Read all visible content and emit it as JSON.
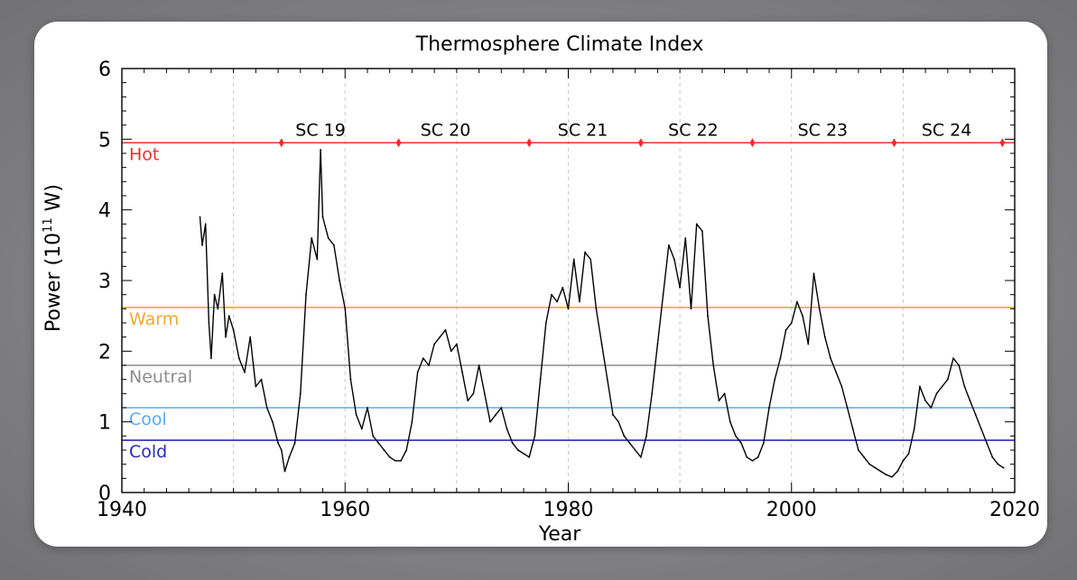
{
  "chart_data": {
    "type": "line",
    "title": "Thermosphere Climate Index",
    "xlabel": "Year",
    "ylabel_main": "Power (10",
    "ylabel_sup": "11",
    "ylabel_end": " W)",
    "xlim": [
      1940,
      2020
    ],
    "ylim": [
      0,
      6
    ],
    "x_ticks": [
      1940,
      1960,
      1980,
      2000,
      2020
    ],
    "y_ticks": [
      0,
      1,
      2,
      3,
      4,
      5,
      6
    ],
    "x_tick_labels": [
      "1940",
      "1960",
      "1980",
      "2000",
      "2020"
    ],
    "y_tick_labels": [
      "0",
      "1",
      "2",
      "3",
      "4",
      "5",
      "6"
    ],
    "grid": "vertical dashed every 10 years",
    "thresholds": [
      {
        "label": "Hot",
        "value": 4.95,
        "color": "#e8322e"
      },
      {
        "label": "Warm",
        "value": 2.62,
        "color": "#f0a830"
      },
      {
        "label": "Neutral",
        "value": 1.8,
        "color": "#8c8c8c"
      },
      {
        "label": "Cool",
        "value": 1.2,
        "color": "#5aaaf0"
      },
      {
        "label": "Cold",
        "value": 0.74,
        "color": "#2a2ab0"
      }
    ],
    "cycle_boundaries": [
      1954.3,
      1964.8,
      1976.5,
      1986.5,
      1996.5,
      2009.2,
      2018.9
    ],
    "cycles": [
      {
        "label": "SC 19",
        "x": 1957.8
      },
      {
        "label": "SC 20",
        "x": 1969.0
      },
      {
        "label": "SC 21",
        "x": 1981.3
      },
      {
        "label": "SC 22",
        "x": 1991.2
      },
      {
        "label": "SC 23",
        "x": 2002.8
      },
      {
        "label": "SC 24",
        "x": 2013.9
      }
    ],
    "series_color": "#000000",
    "series": [
      {
        "x": [
          1947.0,
          1947.2,
          1947.5,
          1947.8,
          1948.0,
          1948.3,
          1948.6,
          1949.0,
          1949.3,
          1949.6,
          1950.0,
          1950.5,
          1951.0,
          1951.5,
          1952.0,
          1952.5,
          1953.0,
          1953.5,
          1954.0,
          1954.3,
          1954.6,
          1955.0,
          1955.5,
          1956.0,
          1956.5,
          1957.0,
          1957.5,
          1957.8,
          1958.0,
          1958.5,
          1959.0,
          1959.5,
          1960.0,
          1960.5,
          1961.0,
          1961.5,
          1962.0,
          1962.5,
          1963.0,
          1963.5,
          1964.0,
          1964.5,
          1965.0,
          1965.5,
          1966.0,
          1966.5,
          1967.0,
          1967.5,
          1968.0,
          1968.5,
          1969.0,
          1969.5,
          1970.0,
          1970.5,
          1971.0,
          1971.5,
          1972.0,
          1972.5,
          1973.0,
          1973.5,
          1974.0,
          1974.5,
          1975.0,
          1975.5,
          1976.0,
          1976.5,
          1977.0,
          1977.5,
          1978.0,
          1978.5,
          1979.0,
          1979.5,
          1980.0,
          1980.5,
          1981.0,
          1981.5,
          1982.0,
          1982.5,
          1983.0,
          1983.5,
          1984.0,
          1984.5,
          1985.0,
          1985.5,
          1986.0,
          1986.5,
          1987.0,
          1987.5,
          1988.0,
          1988.5,
          1989.0,
          1989.5,
          1990.0,
          1990.5,
          1991.0,
          1991.5,
          1992.0,
          1992.5,
          1993.0,
          1993.5,
          1994.0,
          1994.5,
          1995.0,
          1995.5,
          1996.0,
          1996.5,
          1997.0,
          1997.5,
          1998.0,
          1998.5,
          1999.0,
          1999.5,
          2000.0,
          2000.5,
          2001.0,
          2001.5,
          2002.0,
          2002.5,
          2003.0,
          2003.5,
          2004.0,
          2004.5,
          2005.0,
          2005.5,
          2006.0,
          2006.5,
          2007.0,
          2007.5,
          2008.0,
          2008.5,
          2009.0,
          2009.5,
          2010.0,
          2010.5,
          2011.0,
          2011.5,
          2012.0,
          2012.5,
          2013.0,
          2013.5,
          2014.0,
          2014.5,
          2015.0,
          2015.5,
          2016.0,
          2016.5,
          2017.0,
          2017.5,
          2018.0,
          2018.5,
          2019.0
        ],
        "y": [
          3.9,
          3.5,
          3.8,
          2.4,
          1.9,
          2.8,
          2.6,
          3.1,
          2.2,
          2.5,
          2.3,
          1.9,
          1.7,
          2.2,
          1.5,
          1.6,
          1.2,
          1.0,
          0.7,
          0.6,
          0.3,
          0.5,
          0.7,
          1.4,
          2.8,
          3.6,
          3.3,
          4.85,
          3.9,
          3.6,
          3.5,
          3.0,
          2.6,
          1.6,
          1.1,
          0.9,
          1.2,
          0.8,
          0.7,
          0.6,
          0.5,
          0.45,
          0.45,
          0.6,
          1.0,
          1.7,
          1.9,
          1.8,
          2.1,
          2.2,
          2.3,
          2.0,
          2.1,
          1.7,
          1.3,
          1.4,
          1.8,
          1.4,
          1.0,
          1.1,
          1.2,
          0.9,
          0.7,
          0.6,
          0.55,
          0.5,
          0.8,
          1.6,
          2.4,
          2.8,
          2.7,
          2.9,
          2.6,
          3.3,
          2.7,
          3.4,
          3.3,
          2.6,
          2.1,
          1.6,
          1.1,
          1.0,
          0.8,
          0.7,
          0.6,
          0.5,
          0.8,
          1.4,
          2.1,
          2.8,
          3.5,
          3.3,
          2.9,
          3.6,
          2.6,
          3.8,
          3.7,
          2.5,
          1.8,
          1.3,
          1.4,
          1.0,
          0.8,
          0.7,
          0.5,
          0.45,
          0.5,
          0.7,
          1.2,
          1.6,
          1.9,
          2.3,
          2.4,
          2.7,
          2.5,
          2.1,
          3.1,
          2.6,
          2.2,
          1.9,
          1.7,
          1.5,
          1.2,
          0.9,
          0.6,
          0.5,
          0.4,
          0.35,
          0.3,
          0.25,
          0.22,
          0.3,
          0.45,
          0.55,
          0.9,
          1.5,
          1.3,
          1.2,
          1.4,
          1.5,
          1.6,
          1.9,
          1.8,
          1.5,
          1.3,
          1.1,
          0.9,
          0.7,
          0.5,
          0.4,
          0.35
        ]
      }
    ]
  }
}
